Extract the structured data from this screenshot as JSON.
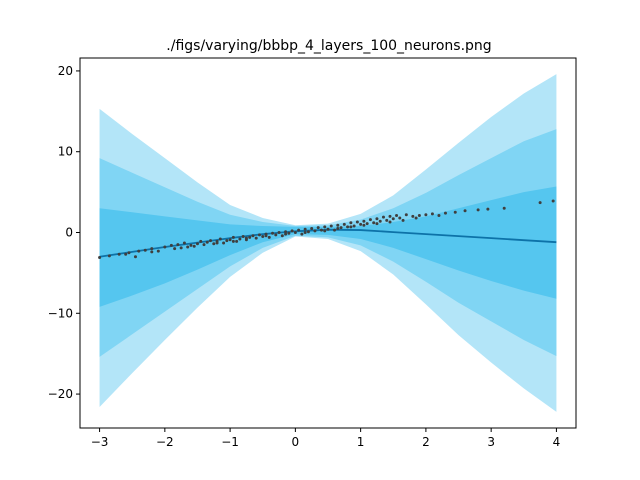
{
  "chart_data": {
    "type": "line",
    "title": "./figs/varying/bbbp_4_layers_100_neurons.png",
    "xlabel": "",
    "ylabel": "",
    "xlim": [
      -3.3,
      4.3
    ],
    "ylim": [
      -24.2,
      21.6
    ],
    "xticks": [
      -3,
      -2,
      -1,
      0,
      1,
      2,
      3,
      4
    ],
    "yticks": [
      -20,
      -10,
      0,
      10,
      20
    ],
    "xtick_labels": [
      "−3",
      "−2",
      "−1",
      "0",
      "1",
      "2",
      "3",
      "4"
    ],
    "ytick_labels": [
      "−20",
      "−10",
      "0",
      "10",
      "20"
    ],
    "grid": false,
    "colors": {
      "band_outer": "#b3e5f8",
      "band_middle": "#80d5f4",
      "band_inner": "#55c6ef",
      "mean_line": "#0d72a8",
      "points": "#3f3f3f"
    },
    "bands": {
      "x": [
        -3.0,
        -2.5,
        -2.0,
        -1.5,
        -1.0,
        -0.5,
        0.0,
        0.5,
        1.0,
        1.5,
        2.0,
        2.5,
        3.0,
        3.5,
        4.0
      ],
      "sigma1_upper": [
        3.0,
        2.5,
        2.0,
        1.5,
        1.0,
        0.8,
        0.7,
        0.7,
        0.8,
        1.3,
        2.0,
        3.0,
        4.0,
        5.0,
        5.7
      ],
      "sigma1_lower": [
        -9.2,
        -7.8,
        -6.3,
        -4.6,
        -2.8,
        -1.2,
        -0.2,
        -0.3,
        -0.8,
        -1.9,
        -3.3,
        -4.7,
        -6.0,
        -7.2,
        -8.2
      ],
      "sigma2_upper": [
        9.2,
        7.4,
        5.6,
        3.8,
        2.2,
        1.3,
        0.8,
        0.9,
        1.6,
        3.0,
        4.9,
        7.1,
        9.2,
        11.3,
        12.8
      ],
      "sigma2_lower": [
        -15.4,
        -12.6,
        -9.8,
        -7.0,
        -4.2,
        -1.9,
        -0.4,
        -0.6,
        -1.6,
        -3.6,
        -6.1,
        -8.7,
        -11.0,
        -13.3,
        -15.3
      ],
      "sigma3_upper": [
        15.3,
        12.2,
        9.2,
        6.2,
        3.4,
        1.8,
        0.9,
        1.1,
        2.3,
        4.6,
        7.8,
        11.1,
        14.3,
        17.2,
        19.6
      ],
      "sigma3_lower": [
        -21.6,
        -17.4,
        -13.3,
        -9.3,
        -5.5,
        -2.5,
        -0.5,
        -0.8,
        -2.3,
        -5.2,
        -8.9,
        -12.7,
        -16.1,
        -19.3,
        -22.2
      ]
    },
    "series": [
      {
        "kind": "line",
        "x": [
          -3.0,
          -2.5,
          -2.0,
          -1.5,
          -1.0,
          -0.5,
          0.0,
          0.5,
          1.0,
          1.5,
          2.0,
          2.5,
          3.0,
          3.5,
          4.0
        ],
        "values": [
          -3.0,
          -2.4,
          -1.8,
          -1.25,
          -0.7,
          -0.2,
          0.15,
          0.35,
          0.3,
          0.05,
          -0.2,
          -0.45,
          -0.7,
          -0.95,
          -1.2
        ]
      },
      {
        "kind": "scatter",
        "x": [
          -3.0,
          -2.85,
          -2.7,
          -2.55,
          -2.45,
          -2.4,
          -2.3,
          -2.2,
          -2.1,
          -2.0,
          -1.9,
          -1.85,
          -1.8,
          -1.7,
          -1.65,
          -1.6,
          -1.5,
          -1.45,
          -1.4,
          -1.35,
          -1.3,
          -1.25,
          -1.2,
          -1.15,
          -1.1,
          -1.05,
          -1.0,
          -0.95,
          -0.9,
          -0.85,
          -0.8,
          -0.75,
          -0.7,
          -0.65,
          -0.6,
          -0.55,
          -0.5,
          -0.45,
          -0.4,
          -0.35,
          -0.3,
          -0.25,
          -0.2,
          -0.15,
          -0.1,
          -0.05,
          0.0,
          0.05,
          0.1,
          0.15,
          0.2,
          0.25,
          0.3,
          0.35,
          0.4,
          0.45,
          0.5,
          0.55,
          0.6,
          0.65,
          0.7,
          0.75,
          0.8,
          0.85,
          0.9,
          0.95,
          1.0,
          1.05,
          1.1,
          1.15,
          1.2,
          1.25,
          1.3,
          1.35,
          1.4,
          1.45,
          1.5,
          1.55,
          1.6,
          1.7,
          1.8,
          1.9,
          2.0,
          2.1,
          2.2,
          2.3,
          2.45,
          2.6,
          2.8,
          2.95,
          3.2,
          3.75,
          3.95,
          -2.6,
          -2.2,
          -1.75,
          -1.55,
          -1.2,
          -0.95,
          -0.75,
          -0.45,
          -0.15,
          0.15,
          0.45,
          0.65,
          0.85,
          1.05,
          1.25,
          1.45,
          1.65,
          1.85
        ],
        "values": [
          -3.1,
          -2.9,
          -2.7,
          -2.5,
          -3.0,
          -2.3,
          -2.2,
          -2.0,
          -2.3,
          -1.8,
          -1.6,
          -2.0,
          -1.5,
          -1.3,
          -1.8,
          -1.6,
          -1.4,
          -1.1,
          -1.5,
          -1.2,
          -1.0,
          -1.4,
          -1.1,
          -0.8,
          -1.3,
          -1.0,
          -0.9,
          -0.6,
          -1.1,
          -0.8,
          -0.5,
          -0.9,
          -0.6,
          -0.4,
          -0.7,
          -0.3,
          -0.5,
          -0.2,
          -0.6,
          -0.1,
          -0.3,
          0.0,
          -0.4,
          0.1,
          -0.1,
          0.2,
          0.0,
          0.3,
          -0.2,
          0.4,
          0.1,
          0.5,
          0.2,
          0.6,
          0.3,
          0.7,
          0.4,
          0.8,
          0.3,
          0.9,
          0.6,
          1.0,
          0.7,
          1.2,
          0.8,
          1.3,
          1.0,
          1.4,
          1.1,
          1.6,
          1.2,
          1.7,
          1.4,
          1.9,
          1.5,
          2.0,
          1.7,
          2.1,
          1.8,
          2.2,
          2.0,
          2.1,
          2.2,
          2.3,
          2.1,
          2.4,
          2.5,
          2.7,
          2.8,
          2.9,
          3.0,
          3.7,
          3.9,
          -2.7,
          -2.4,
          -1.9,
          -1.7,
          -1.3,
          -1.1,
          -0.7,
          -0.4,
          -0.2,
          0.0,
          0.2,
          0.5,
          0.7,
          0.9,
          1.1,
          1.3,
          1.5,
          1.8
        ]
      }
    ]
  }
}
